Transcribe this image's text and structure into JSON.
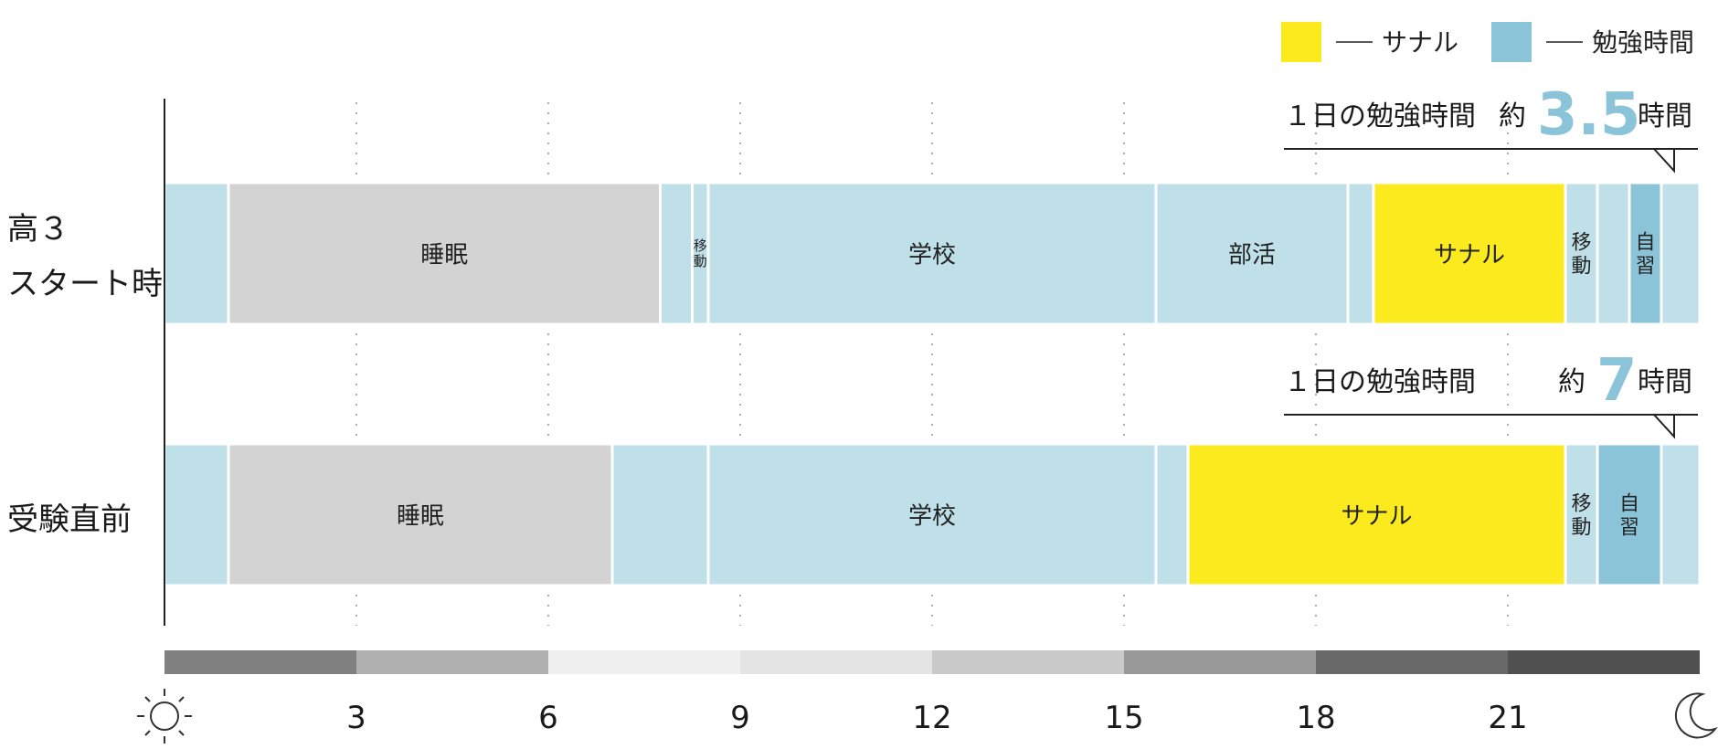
{
  "colors": {
    "other": "#bfe0e8",
    "sleep": "#d3d3d3",
    "sanaru": "#fbeb1e",
    "study": "#8bc4d8",
    "accent_text": "#8bc4d8",
    "axis": "#222222"
  },
  "legend": [
    {
      "label": "サナル",
      "color_key": "sanaru"
    },
    {
      "label": "勉強時間",
      "color_key": "study"
    }
  ],
  "icons": {
    "start": "sun-icon",
    "end": "moon-icon"
  },
  "chart_data": {
    "type": "bar",
    "orientation": "horizontal-timeline",
    "x_unit": "hour",
    "xlim": [
      0,
      24
    ],
    "ticks": [
      3,
      6,
      9,
      12,
      15,
      18,
      21
    ],
    "tick_labels": [
      "3",
      "6",
      "9",
      "12",
      "15",
      "18",
      "21"
    ],
    "time_band": [
      {
        "from": 0,
        "to": 3,
        "color": "#808080"
      },
      {
        "from": 3,
        "to": 6,
        "color": "#b0b0b0"
      },
      {
        "from": 6,
        "to": 9,
        "color": "#f0f0f0"
      },
      {
        "from": 9,
        "to": 12,
        "color": "#e4e4e4"
      },
      {
        "from": 12,
        "to": 15,
        "color": "#c9c9c9"
      },
      {
        "from": 15,
        "to": 18,
        "color": "#999999"
      },
      {
        "from": 18,
        "to": 21,
        "color": "#686868"
      },
      {
        "from": 21,
        "to": 24,
        "color": "#505050"
      }
    ],
    "rows": [
      {
        "label_lines": [
          "高３",
          "スタート時"
        ],
        "annotation": {
          "prefix": "１日の勉強時間",
          "approx": "約",
          "value": "3.5",
          "unit": "時間"
        },
        "segments": [
          {
            "start": 0,
            "end": 1,
            "category": "other",
            "label": ""
          },
          {
            "start": 1,
            "end": 7.75,
            "category": "sleep",
            "label": "睡眠"
          },
          {
            "start": 7.75,
            "end": 8.25,
            "category": "other",
            "label": ""
          },
          {
            "start": 8.25,
            "end": 8.5,
            "category": "other",
            "label": "移動",
            "label_style": "small-vertical"
          },
          {
            "start": 8.5,
            "end": 15.5,
            "category": "other",
            "label": "学校"
          },
          {
            "start": 15.5,
            "end": 18.5,
            "category": "other",
            "label": "部活"
          },
          {
            "start": 18.5,
            "end": 18.9,
            "category": "other",
            "label": ""
          },
          {
            "start": 18.9,
            "end": 21.9,
            "category": "sanaru",
            "label": "サナル"
          },
          {
            "start": 21.9,
            "end": 22.4,
            "category": "other",
            "label": "移動",
            "label_style": "vertical"
          },
          {
            "start": 22.4,
            "end": 22.9,
            "category": "other",
            "label": ""
          },
          {
            "start": 22.9,
            "end": 23.4,
            "category": "study",
            "label": "自習",
            "label_style": "vertical"
          },
          {
            "start": 23.4,
            "end": 24,
            "category": "other",
            "label": ""
          }
        ]
      },
      {
        "label_lines": [
          "受験直前"
        ],
        "annotation": {
          "prefix": "１日の勉強時間",
          "approx": "約",
          "value": "7",
          "unit": "時間"
        },
        "segments": [
          {
            "start": 0,
            "end": 1,
            "category": "other",
            "label": ""
          },
          {
            "start": 1,
            "end": 7,
            "category": "sleep",
            "label": "睡眠"
          },
          {
            "start": 7,
            "end": 8.5,
            "category": "other",
            "label": ""
          },
          {
            "start": 8.5,
            "end": 15.5,
            "category": "other",
            "label": "学校"
          },
          {
            "start": 15.5,
            "end": 16,
            "category": "other",
            "label": ""
          },
          {
            "start": 16,
            "end": 21.9,
            "category": "sanaru",
            "label": "サナル"
          },
          {
            "start": 21.9,
            "end": 22.4,
            "category": "other",
            "label": "移動",
            "label_style": "vertical"
          },
          {
            "start": 22.4,
            "end": 23.4,
            "category": "study",
            "label": "自習",
            "label_style": "vertical"
          },
          {
            "start": 23.4,
            "end": 24,
            "category": "other",
            "label": ""
          }
        ]
      }
    ]
  }
}
